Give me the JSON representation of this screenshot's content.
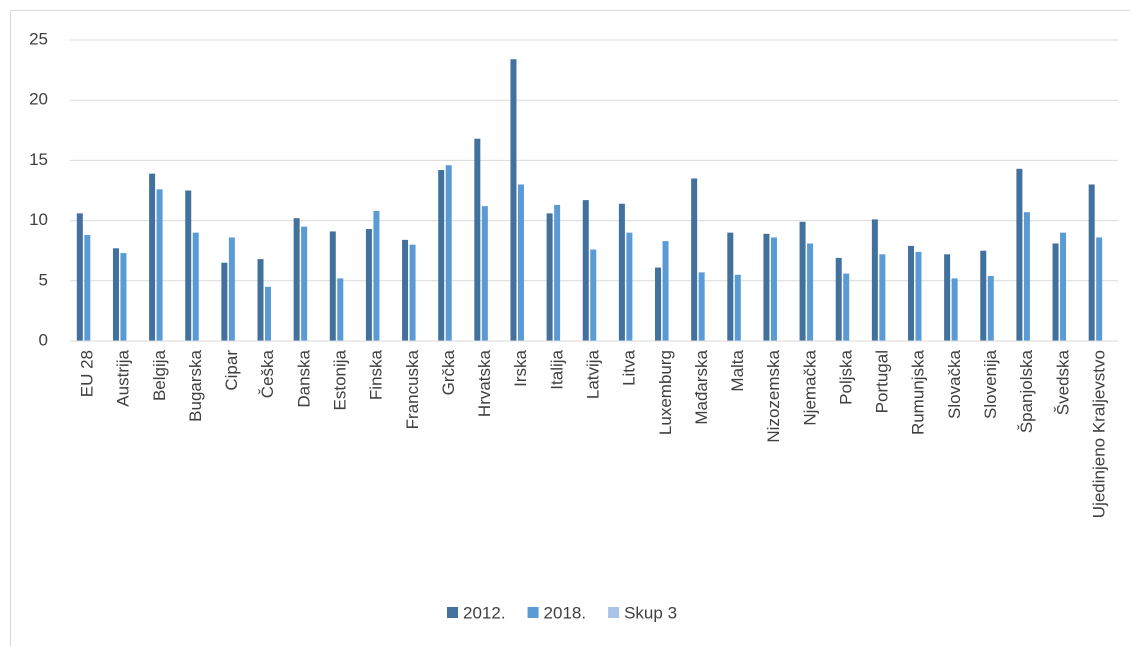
{
  "chart_data": {
    "type": "bar",
    "categories": [
      "EU 28",
      "Austrija",
      "Belgija",
      "Bugarska",
      "Cipar",
      "Češka",
      "Danska",
      "Estonija",
      "Finska",
      "Francuska",
      "Grčka",
      "Hrvatska",
      "Irska",
      "Italija",
      "Latvija",
      "Litva",
      "Luxemburg",
      "Mađarska",
      "Malta",
      "Nizozemska",
      "Njemačka",
      "Poljska",
      "Portugal",
      "Rumunjska",
      "Slovačka",
      "Slovenija",
      "Španjolska",
      "Švedska",
      "Ujedinjeno Kraljevstvo"
    ],
    "series": [
      {
        "name": "2012.",
        "color": "#41719c",
        "values": [
          10.6,
          7.7,
          13.9,
          12.5,
          6.5,
          6.8,
          10.2,
          9.1,
          9.3,
          8.4,
          14.2,
          16.8,
          23.4,
          10.6,
          11.7,
          11.4,
          6.1,
          13.5,
          9.0,
          8.9,
          9.9,
          6.9,
          10.1,
          7.9,
          7.2,
          7.5,
          14.3,
          8.1,
          13.0
        ]
      },
      {
        "name": "2018.",
        "color": "#5b9bd5",
        "values": [
          8.8,
          7.3,
          12.6,
          9.0,
          8.6,
          4.5,
          9.5,
          5.2,
          10.8,
          8.0,
          14.6,
          11.2,
          13.0,
          11.3,
          7.6,
          9.0,
          8.3,
          5.7,
          5.5,
          8.6,
          8.1,
          5.6,
          7.2,
          7.4,
          5.2,
          5.4,
          10.7,
          9.0,
          8.6
        ]
      },
      {
        "name": "Skup 3",
        "color": "#a9c4e6",
        "values": [
          null,
          null,
          null,
          null,
          null,
          null,
          null,
          null,
          null,
          null,
          null,
          null,
          null,
          null,
          null,
          null,
          null,
          null,
          null,
          null,
          null,
          null,
          null,
          null,
          null,
          null,
          null,
          null,
          null
        ]
      }
    ],
    "ylim": [
      0,
      25
    ],
    "yticks": [
      0,
      5,
      10,
      15,
      20,
      25
    ],
    "grid": true,
    "legend": "bottom"
  }
}
